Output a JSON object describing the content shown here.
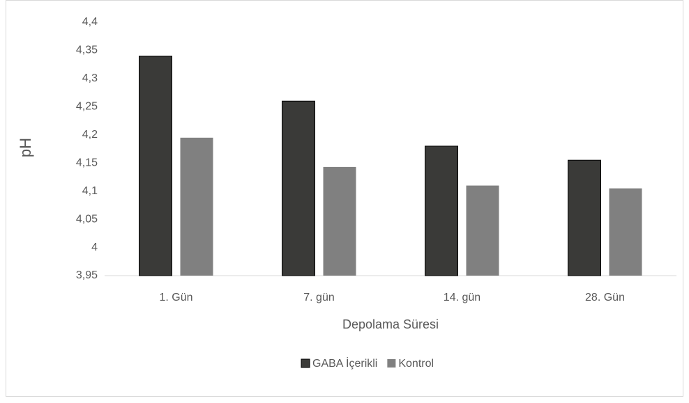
{
  "chart_data": {
    "type": "bar",
    "x_label": "Depolama Süresi",
    "y_label": "pH",
    "categories": [
      "1. Gün",
      "7. gün",
      "14. gün",
      "28. Gün"
    ],
    "series": [
      {
        "name": "GABA İçerikli",
        "color": "#3a3a38",
        "values": [
          4.34,
          4.26,
          4.18,
          4.155
        ]
      },
      {
        "name": "Kontrol",
        "color": "#808080",
        "values": [
          4.195,
          4.143,
          4.11,
          4.105
        ]
      }
    ],
    "ylim": [
      3.95,
      4.4
    ],
    "yticks": [
      {
        "value": 3.95,
        "label": "3,95"
      },
      4,
      {
        "value": 4.05,
        "label": "4,05"
      },
      {
        "value": 4.1,
        "label": "4,1"
      },
      {
        "value": 4.15,
        "label": "4,15"
      },
      {
        "value": 4.2,
        "label": "4,2"
      },
      {
        "value": 4.25,
        "label": "4,25"
      },
      {
        "value": 4.3,
        "label": "4,3"
      },
      {
        "value": 4.35,
        "label": "4,35"
      },
      {
        "value": 4.4,
        "label": "4,4"
      }
    ],
    "grid": false,
    "legend": "bottom"
  }
}
